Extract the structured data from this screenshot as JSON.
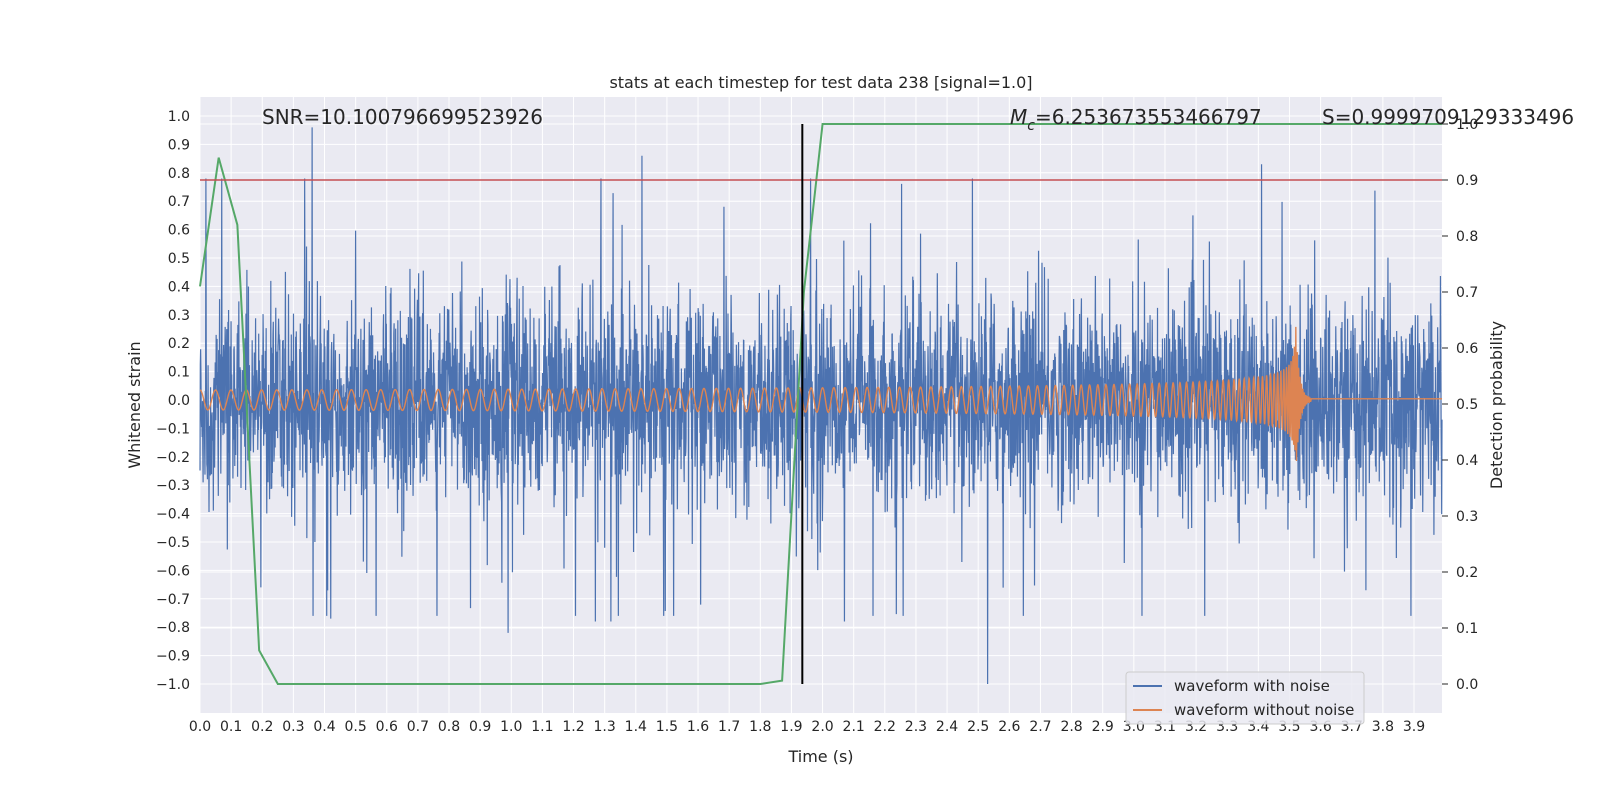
{
  "chart_data": {
    "type": "line",
    "title": "stats at each timestep for test data 238 [signal=1.0]",
    "xlabel": "Time (s)",
    "ylabel_left": "Whitened strain",
    "ylabel_right": "Detection probability",
    "xlim": [
      0.0,
      3.99
    ],
    "ylim_left": [
      -1.05,
      1.05
    ],
    "ylim_right": [
      -0.05,
      1.0
    ],
    "x_ticks": [
      "0.0",
      "0.1",
      "0.2",
      "0.3",
      "0.4",
      "0.5",
      "0.6",
      "0.7",
      "0.8",
      "0.9",
      "1.0",
      "1.1",
      "1.2",
      "1.3",
      "1.4",
      "1.5",
      "1.6",
      "1.7",
      "1.8",
      "1.9",
      "2.0",
      "2.1",
      "2.2",
      "2.3",
      "2.4",
      "2.5",
      "2.6",
      "2.7",
      "2.8",
      "2.9",
      "3.0",
      "3.1",
      "3.2",
      "3.3",
      "3.4",
      "3.5",
      "3.6",
      "3.7",
      "3.8",
      "3.9"
    ],
    "y_ticks_left": [
      "1.0",
      "0.9",
      "0.8",
      "0.7",
      "0.6",
      "0.5",
      "0.4",
      "0.3",
      "0.2",
      "0.1",
      "0.0",
      "−0.1",
      "−0.2",
      "−0.3",
      "−0.4",
      "−0.5",
      "−0.6",
      "−0.7",
      "−0.8",
      "−0.9",
      "−1.0"
    ],
    "y_ticks_right": [
      "1.0",
      "0.9",
      "0.8",
      "0.7",
      "0.6",
      "0.5",
      "0.4",
      "0.3",
      "0.2",
      "0.1",
      "0.0"
    ],
    "grid": true,
    "legend_position": "lower-right",
    "annotations": {
      "snr": "SNR=10.100796699523926",
      "mc_symbol": "M",
      "mc_sub": "c",
      "mc_value": "=6.253673553466797",
      "s": "S=0.9999709129333496"
    },
    "threshold_y_right": 0.9,
    "vertical_marker_x": 1.935,
    "series": [
      {
        "name": "waveform with noise",
        "color": "#4c72b0",
        "axis": "left",
        "envelope_quantile": 0.4,
        "t_range": [
          0.0,
          3.99
        ],
        "peaks": [
          [
            0.36,
            0.96
          ],
          [
            1.42,
            0.86
          ],
          [
            3.41,
            0.83
          ],
          [
            2.53,
            -1.0
          ],
          [
            0.99,
            -0.82
          ],
          [
            1.27,
            -0.78
          ],
          [
            1.32,
            -0.78
          ],
          [
            0.42,
            -0.77
          ],
          [
            2.07,
            -0.78
          ],
          [
            1.49,
            -0.76
          ]
        ]
      },
      {
        "name": "waveform without noise",
        "color": "#dd8452",
        "axis": "left",
        "t_range": [
          0.0,
          3.99
        ],
        "merger_time": 3.52,
        "base_amplitude": 0.035,
        "peak_amplitude": 0.27,
        "base_frequency_hz": 20
      },
      {
        "name": "",
        "color": "#55a868",
        "axis": "right",
        "x": [
          0.0,
          0.06,
          0.12,
          0.19,
          0.25,
          1.8,
          1.87,
          1.94,
          2.0,
          3.99
        ],
        "y": [
          0.71,
          0.94,
          0.82,
          0.06,
          0.0,
          0.0,
          0.006,
          0.7,
          1.0,
          1.0
        ]
      }
    ],
    "threshold_color": "#c44e52"
  }
}
